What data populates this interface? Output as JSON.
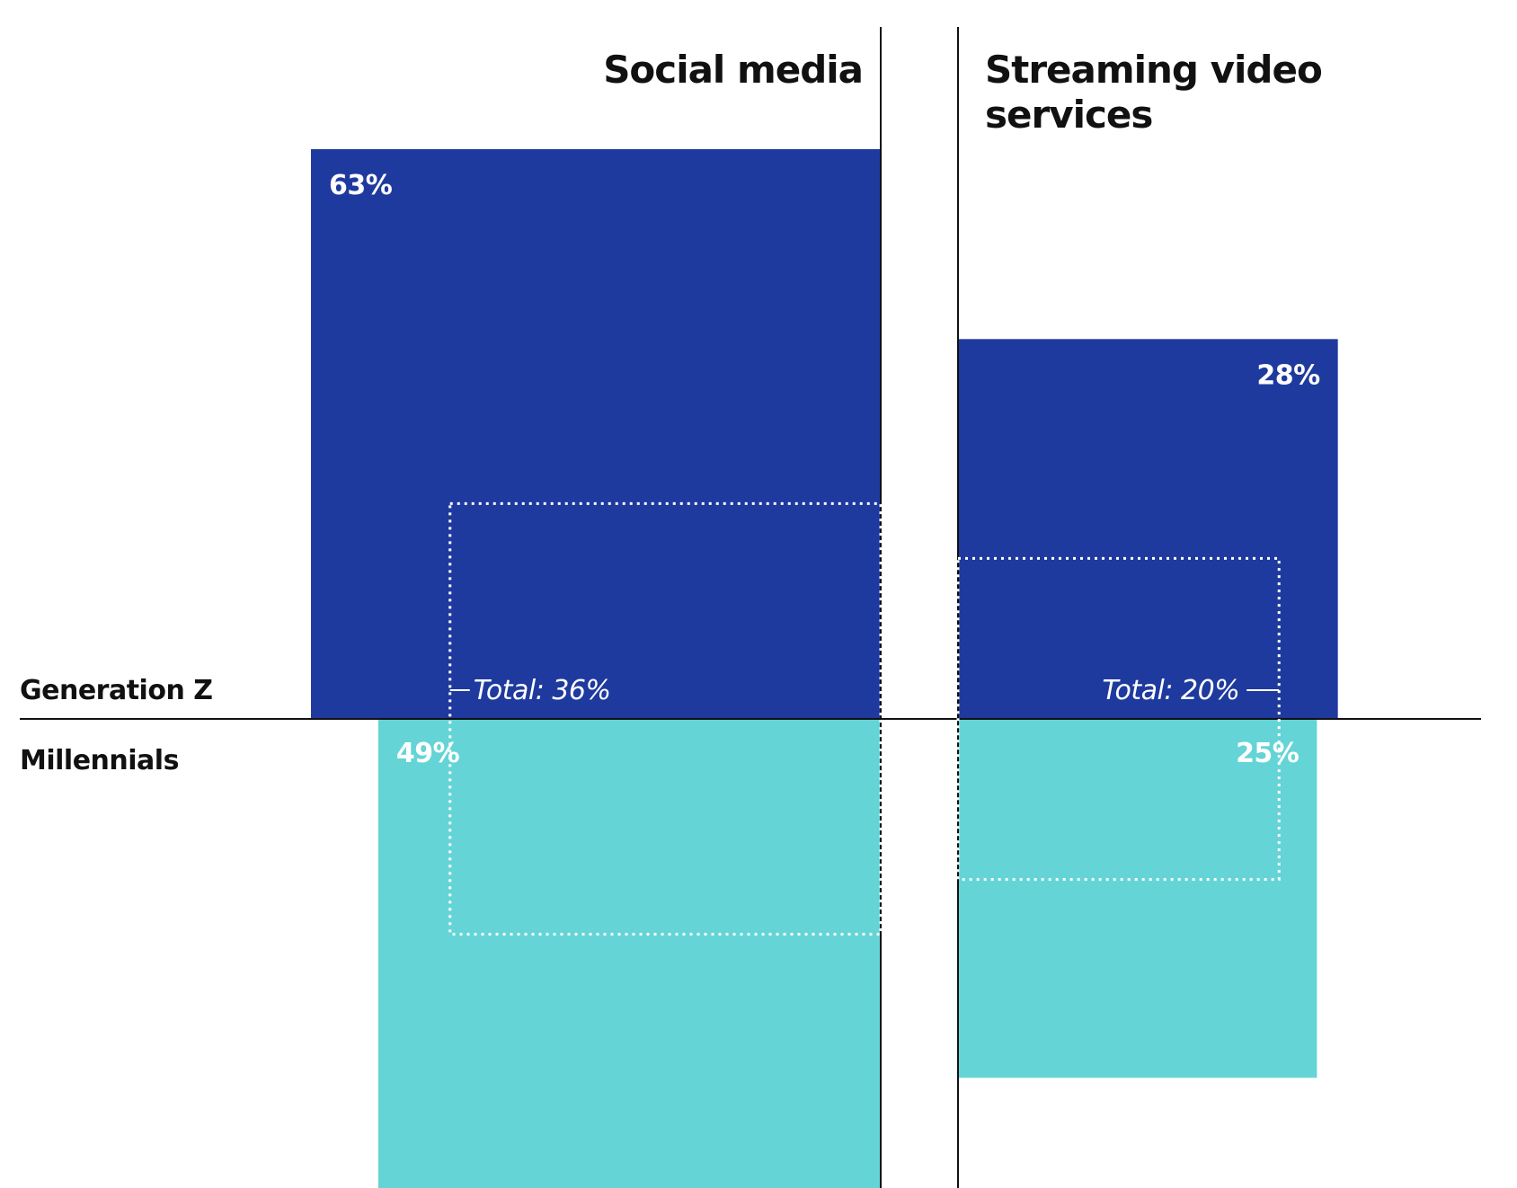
{
  "chart_data": {
    "type": "area-square comparison",
    "rows": [
      "Generation Z",
      "Millennials"
    ],
    "colors": {
      "Generation Z": "#1f3a9e",
      "Millennials": "#64d4d6",
      "total_outline": "#ffffff"
    },
    "panels": [
      {
        "title_lines": [
          "Social media"
        ],
        "values": {
          "Generation Z": 63,
          "Millennials": 49,
          "Total": 36
        },
        "labels": {
          "Generation Z": "63%",
          "Millennials": "49%",
          "Total": "Total: 36%"
        }
      },
      {
        "title_lines": [
          "Streaming video",
          "services"
        ],
        "values": {
          "Generation Z": 28,
          "Millennials": 25,
          "Total": 20
        },
        "labels": {
          "Generation Z": "28%",
          "Millennials": "25%",
          "Total": "Total: 20%"
        }
      }
    ]
  }
}
